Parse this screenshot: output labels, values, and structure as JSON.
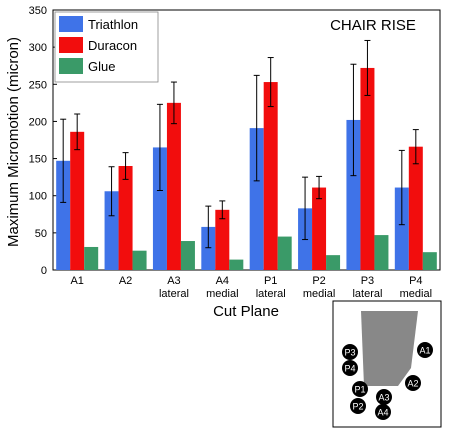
{
  "chart_data": {
    "type": "bar",
    "title": "CHAIR RISE",
    "xlabel": "Cut Plane",
    "ylabel": "Maximum Micromotion (micron)",
    "ylim": [
      0,
      350
    ],
    "yticks": [
      0,
      50,
      100,
      150,
      200,
      250,
      300,
      350
    ],
    "grid": false,
    "legend_position": "top-left",
    "categories": [
      [
        "A1"
      ],
      [
        "A2"
      ],
      [
        "A3",
        "lateral"
      ],
      [
        "A4",
        "medial"
      ],
      [
        "P1",
        "lateral"
      ],
      [
        "P2",
        "medial"
      ],
      [
        "P3",
        "lateral"
      ],
      [
        "P4",
        "medial"
      ]
    ],
    "series": [
      {
        "name": "Triathlon",
        "color": "#3f73e8",
        "values": [
          147,
          106,
          165,
          58,
          191,
          83,
          202,
          111
        ],
        "errors": [
          56,
          33,
          58,
          28,
          71,
          42,
          75,
          50
        ]
      },
      {
        "name": "Duracon",
        "color": "#f20d0d",
        "values": [
          186,
          140,
          225,
          81,
          253,
          111,
          272,
          166
        ],
        "errors": [
          24,
          18,
          28,
          12,
          33,
          15,
          37,
          23
        ]
      },
      {
        "name": "Glue",
        "color": "#3a9a68",
        "values": [
          31,
          26,
          39,
          14,
          45,
          20,
          47,
          24
        ],
        "errors": [
          0,
          0,
          0,
          0,
          0,
          0,
          0,
          0
        ]
      }
    ]
  },
  "inset": {
    "labels": [
      "A1",
      "A2",
      "A3",
      "A4",
      "P1",
      "P2",
      "P3",
      "P4"
    ]
  }
}
